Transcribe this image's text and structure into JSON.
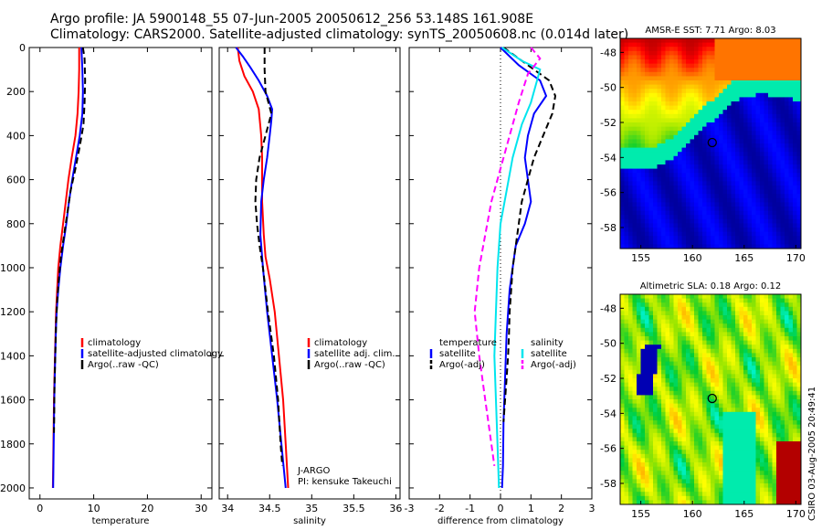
{
  "title": {
    "line1": "Argo profile: JA 5900148_55 07-Jun-2005 20050612_256 53.148S 161.908E",
    "line2": "Climatology: CARS2000. Satellite-adjusted climatology: synTS_20050608.nc (0.014d later)"
  },
  "credit": "CSIRO 03-Aug-2005 20:49:41",
  "chart_data": [
    {
      "type": "line",
      "panel": "temperature",
      "xlabel": "temperature",
      "ylabel": "",
      "xlim": [
        -2,
        32
      ],
      "ylim": [
        2050,
        0
      ],
      "xticks": [
        0,
        10,
        20,
        30
      ],
      "yticks": [
        0,
        200,
        400,
        600,
        800,
        1000,
        1200,
        1400,
        1600,
        1800,
        2000
      ],
      "legend": {
        "placement": "center-right",
        "entries": [
          "climatology",
          "satellite-adjusted climatology",
          "Argo(..raw -QC)"
        ]
      },
      "series": [
        {
          "name": "climatology",
          "color": "#ff0000",
          "dash": "solid",
          "points": [
            [
              7.3,
              0
            ],
            [
              7.3,
              100
            ],
            [
              7.2,
              200
            ],
            [
              7.0,
              300
            ],
            [
              6.6,
              400
            ],
            [
              5.9,
              500
            ],
            [
              5.3,
              600
            ],
            [
              4.8,
              700
            ],
            [
              4.3,
              800
            ],
            [
              3.8,
              900
            ],
            [
              3.4,
              1000
            ],
            [
              3.2,
              1100
            ],
            [
              3.0,
              1200
            ],
            [
              2.9,
              1300
            ],
            [
              2.8,
              1400
            ],
            [
              2.7,
              1500
            ],
            [
              2.6,
              1600
            ],
            [
              2.55,
              1700
            ],
            [
              2.5,
              1800
            ],
            [
              2.45,
              1900
            ],
            [
              2.4,
              2000
            ]
          ]
        },
        {
          "name": "satellite-adjusted climatology",
          "color": "#0000ff",
          "dash": "solid",
          "points": [
            [
              7.7,
              0
            ],
            [
              7.9,
              100
            ],
            [
              8.0,
              200
            ],
            [
              7.9,
              300
            ],
            [
              7.4,
              400
            ],
            [
              6.7,
              500
            ],
            [
              6.0,
              600
            ],
            [
              5.4,
              700
            ],
            [
              4.9,
              800
            ],
            [
              4.3,
              900
            ],
            [
              3.8,
              1000
            ],
            [
              3.4,
              1100
            ],
            [
              3.1,
              1200
            ],
            [
              2.95,
              1300
            ],
            [
              2.85,
              1400
            ],
            [
              2.75,
              1500
            ],
            [
              2.65,
              1600
            ],
            [
              2.6,
              1700
            ],
            [
              2.55,
              1800
            ],
            [
              2.5,
              1900
            ],
            [
              2.45,
              2000
            ]
          ]
        },
        {
          "name": "Argo(..raw -QC)",
          "color": "#000000",
          "dash": "dashed",
          "points": [
            [
              8.0,
              0
            ],
            [
              8.3,
              50
            ],
            [
              8.4,
              150
            ],
            [
              8.3,
              250
            ],
            [
              8.1,
              350
            ],
            [
              7.4,
              450
            ],
            [
              6.6,
              550
            ],
            [
              5.7,
              650
            ],
            [
              5.1,
              750
            ],
            [
              4.5,
              850
            ],
            [
              3.9,
              950
            ],
            [
              3.5,
              1050
            ],
            [
              3.2,
              1150
            ],
            [
              3.0,
              1250
            ],
            [
              2.9,
              1350
            ],
            [
              2.8,
              1450
            ],
            [
              2.7,
              1550
            ],
            [
              2.65,
              1650
            ],
            [
              2.6,
              1750
            ]
          ]
        }
      ]
    },
    {
      "type": "line",
      "panel": "salinity",
      "xlabel": "salinity",
      "ylabel": "",
      "xlim": [
        33.9,
        36.05
      ],
      "ylim": [
        2050,
        0
      ],
      "xticks": [
        34,
        34.5,
        35,
        35.5,
        36
      ],
      "legend": {
        "placement": "center-right",
        "entries": [
          "climatology",
          "satellite adj. clim.",
          "Argo(..raw -QC)"
        ]
      },
      "annotation": {
        "line1": "J-ARGO",
        "line2": "PI: kensuke Takeuchi"
      },
      "series": [
        {
          "name": "climatology",
          "color": "#ff0000",
          "dash": "solid",
          "points": [
            [
              34.12,
              0
            ],
            [
              34.14,
              60
            ],
            [
              34.2,
              130
            ],
            [
              34.3,
              200
            ],
            [
              34.37,
              280
            ],
            [
              34.4,
              400
            ],
            [
              34.41,
              500
            ],
            [
              34.41,
              700
            ],
            [
              34.43,
              850
            ],
            [
              34.45,
              950
            ],
            [
              34.5,
              1050
            ],
            [
              34.56,
              1200
            ],
            [
              34.61,
              1400
            ],
            [
              34.66,
              1600
            ],
            [
              34.69,
              1800
            ],
            [
              34.72,
              2000
            ]
          ]
        },
        {
          "name": "satellite adj. clim.",
          "color": "#0000ff",
          "dash": "solid",
          "points": [
            [
              34.1,
              0
            ],
            [
              34.18,
              40
            ],
            [
              34.27,
              90
            ],
            [
              34.37,
              150
            ],
            [
              34.47,
              220
            ],
            [
              34.53,
              280
            ],
            [
              34.52,
              330
            ],
            [
              34.5,
              400
            ],
            [
              34.47,
              500
            ],
            [
              34.43,
              600
            ],
            [
              34.4,
              700
            ],
            [
              34.39,
              850
            ],
            [
              34.42,
              1000
            ],
            [
              34.47,
              1200
            ],
            [
              34.53,
              1400
            ],
            [
              34.59,
              1600
            ],
            [
              34.64,
              1800
            ],
            [
              34.69,
              2000
            ]
          ]
        },
        {
          "name": "Argo(..raw -QC)",
          "color": "#000000",
          "dash": "dashed",
          "points": [
            [
              34.44,
              0
            ],
            [
              34.44,
              100
            ],
            [
              34.45,
              200
            ],
            [
              34.52,
              300
            ],
            [
              34.45,
              400
            ],
            [
              34.38,
              500
            ],
            [
              34.34,
              600
            ],
            [
              34.33,
              700
            ],
            [
              34.35,
              800
            ],
            [
              34.38,
              900
            ],
            [
              34.42,
              1000
            ],
            [
              34.48,
              1200
            ],
            [
              34.55,
              1400
            ],
            [
              34.6,
              1600
            ],
            [
              34.63,
              1800
            ],
            [
              34.65,
              1900
            ]
          ]
        }
      ]
    },
    {
      "type": "line",
      "panel": "difference",
      "xlabel": "difference from climatology",
      "ylabel": "",
      "xlim": [
        -3,
        3
      ],
      "ylim": [
        2050,
        0
      ],
      "xticks": [
        -3,
        -2,
        -1,
        0,
        1,
        2,
        3
      ],
      "legend": {
        "placement": "center",
        "columns": [
          {
            "heading": "temperature",
            "entries": [
              "satellite",
              "Argo(-adj)"
            ]
          },
          {
            "heading": "salinity",
            "entries": [
              "satellite",
              "Argo(-adj)"
            ]
          }
        ]
      },
      "series": [
        {
          "name": "temperature satellite",
          "color": "#0000ff",
          "dash": "solid",
          "points": [
            [
              0,
              0
            ],
            [
              0.6,
              80
            ],
            [
              1.3,
              150
            ],
            [
              1.5,
              220
            ],
            [
              1.1,
              300
            ],
            [
              0.9,
              400
            ],
            [
              0.8,
              500
            ],
            [
              0.9,
              600
            ],
            [
              1.0,
              700
            ],
            [
              0.8,
              800
            ],
            [
              0.5,
              900
            ],
            [
              0.4,
              1000
            ],
            [
              0.3,
              1100
            ],
            [
              0.2,
              1300
            ],
            [
              0.15,
              1500
            ],
            [
              0.1,
              1700
            ],
            [
              0.08,
              1900
            ],
            [
              0.05,
              2000
            ]
          ]
        },
        {
          "name": "temperature Argo(-adj)",
          "color": "#000000",
          "dash": "dashed",
          "points": [
            [
              0.1,
              0
            ],
            [
              0.9,
              80
            ],
            [
              1.6,
              150
            ],
            [
              1.8,
              220
            ],
            [
              1.7,
              300
            ],
            [
              1.4,
              400
            ],
            [
              1.1,
              500
            ],
            [
              0.9,
              600
            ],
            [
              0.7,
              700
            ],
            [
              0.6,
              800
            ],
            [
              0.5,
              900
            ],
            [
              0.4,
              1000
            ],
            [
              0.35,
              1100
            ],
            [
              0.3,
              1200
            ],
            [
              0.28,
              1300
            ],
            [
              0.25,
              1400
            ],
            [
              0.2,
              1500
            ],
            [
              0.15,
              1600
            ],
            [
              0.1,
              1700
            ]
          ]
        },
        {
          "name": "salinity satellite",
          "color": "#00e5ee",
          "dash": "solid",
          "points": [
            [
              0.05,
              0
            ],
            [
              0.7,
              60
            ],
            [
              1.3,
              100
            ],
            [
              1.2,
              150
            ],
            [
              1.0,
              250
            ],
            [
              0.7,
              350
            ],
            [
              0.4,
              500
            ],
            [
              0.2,
              650
            ],
            [
              0.0,
              800
            ],
            [
              -0.1,
              1000
            ],
            [
              -0.15,
              1200
            ],
            [
              -0.2,
              1400
            ],
            [
              -0.15,
              1600
            ],
            [
              -0.1,
              1800
            ],
            [
              -0.05,
              2000
            ]
          ]
        },
        {
          "name": "salinity Argo(-adj)",
          "color": "#ff00ff",
          "dash": "dashed",
          "points": [
            [
              1.0,
              0
            ],
            [
              1.3,
              50
            ],
            [
              0.9,
              120
            ],
            [
              0.6,
              250
            ],
            [
              0.3,
              400
            ],
            [
              0.0,
              550
            ],
            [
              -0.3,
              700
            ],
            [
              -0.5,
              850
            ],
            [
              -0.7,
              1000
            ],
            [
              -0.85,
              1200
            ],
            [
              -0.7,
              1400
            ],
            [
              -0.5,
              1600
            ],
            [
              -0.3,
              1800
            ],
            [
              -0.2,
              1900
            ]
          ]
        }
      ]
    },
    {
      "type": "heatmap",
      "panel": "sst-map",
      "title": "AMSR-E SST: 7.71  Argo: 8.03",
      "xlim": [
        153,
        170.5
      ],
      "ylim": [
        -59.2,
        -47.2
      ],
      "xticks": [
        155,
        160,
        165,
        170
      ],
      "yticks": [
        -48,
        -50,
        -52,
        -54,
        -56,
        -58
      ],
      "marker": {
        "lon": 161.908,
        "lat": -53.148
      }
    },
    {
      "type": "heatmap",
      "panel": "sla-map",
      "title": "Altimetric SLA: 0.18  Argo: 0.12",
      "xlim": [
        153,
        170.5
      ],
      "ylim": [
        -59.2,
        -47.2
      ],
      "xticks": [
        155,
        160,
        165,
        170
      ],
      "yticks": [
        -48,
        -50,
        -52,
        -54,
        -56,
        -58
      ],
      "marker": {
        "lon": 161.908,
        "lat": -53.148
      }
    }
  ]
}
